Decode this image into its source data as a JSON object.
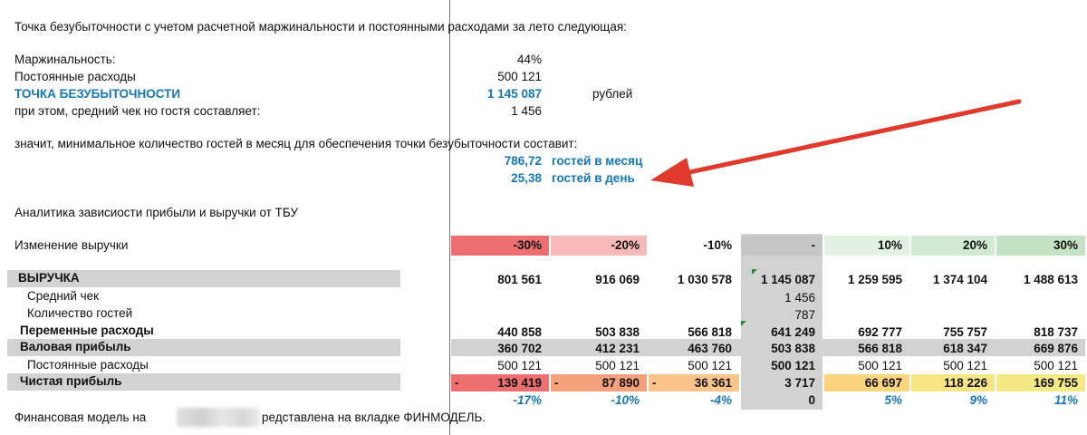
{
  "intro": "Точка безубыточности с учетом расчетной маржинальности и постоянными расходами за лето следующая:",
  "summary": {
    "margin_label": "Маржинальность:",
    "margin_value": "44%",
    "fixed_label": "Постоянные расходы",
    "fixed_value": "500 121",
    "breakeven_label": "ТОЧКА БЕЗУБЫТОЧНОСТИ",
    "breakeven_value": "1 145 087",
    "breakeven_unit": "рублей",
    "check_label": "при этом, средний чек но гостя составляет:",
    "check_value": "1 456"
  },
  "guests": {
    "intro": "значит, минимальное количество гостей в месяц для обеспечения точки безубыточности составит:",
    "month_value": "786,72",
    "month_label": "гостей в месяц",
    "day_value": "25,38",
    "day_label": "гостей в день"
  },
  "analytics_title": "Аналитика зависиости прибыли и выручки от ТБУ",
  "change_label": "Изменение выручки",
  "change_headers": [
    "-30%",
    "-20%",
    "-10%",
    "-",
    "10%",
    "20%",
    "30%"
  ],
  "header_colors": [
    "#ee6f70",
    "#f7b9b9",
    "#ffffff",
    "#c6c6c6",
    "#e3f1e3",
    "#d2ead3",
    "#c4e3c5"
  ],
  "rows": {
    "revenue": {
      "label": "ВЫРУЧКА",
      "values": [
        "801 561",
        "916 069",
        "1 030 578",
        "1 145 087",
        "1 259 595",
        "1 374 104",
        "1 488 613"
      ]
    },
    "avg_check": {
      "label": "Средний чек",
      "value": "1 456"
    },
    "guests": {
      "label": "Количество гостей",
      "value": "787"
    },
    "variable": {
      "label": "Переменные расходы",
      "values": [
        "440 858",
        "503 838",
        "566 818",
        "641 249",
        "692 777",
        "755 757",
        "818 737"
      ]
    },
    "gross": {
      "label": "Валовая прибыль",
      "values": [
        "360 702",
        "412 231",
        "463 760",
        "503 838",
        "566 818",
        "618 347",
        "669 876"
      ]
    },
    "fixed": {
      "label": "Постоянные расходы",
      "values": [
        "500 121",
        "500 121",
        "500 121",
        "500 121",
        "500 121",
        "500 121",
        "500 121"
      ]
    },
    "net": {
      "label": "Чистая прибыль",
      "values": [
        "139 419",
        "87 890",
        "36 361",
        "3 717",
        "66 697",
        "118 226",
        "169 755"
      ],
      "dash": "-",
      "colors": [
        "#ee6f70",
        "#f4a07a",
        "#f8c48a",
        "#d2d2d2",
        "#fbd57e",
        "#f6e683",
        "#f3ea86"
      ]
    },
    "net_pct": [
      "-17%",
      "-10%",
      "-4%",
      "0",
      "5%",
      "9%",
      "11%"
    ]
  },
  "footer": {
    "before": "Финансовая модель на",
    "after": "редставлена на вкладке ФИНМОДЕЛЬ."
  },
  "arrow_color": "#e03a2c"
}
